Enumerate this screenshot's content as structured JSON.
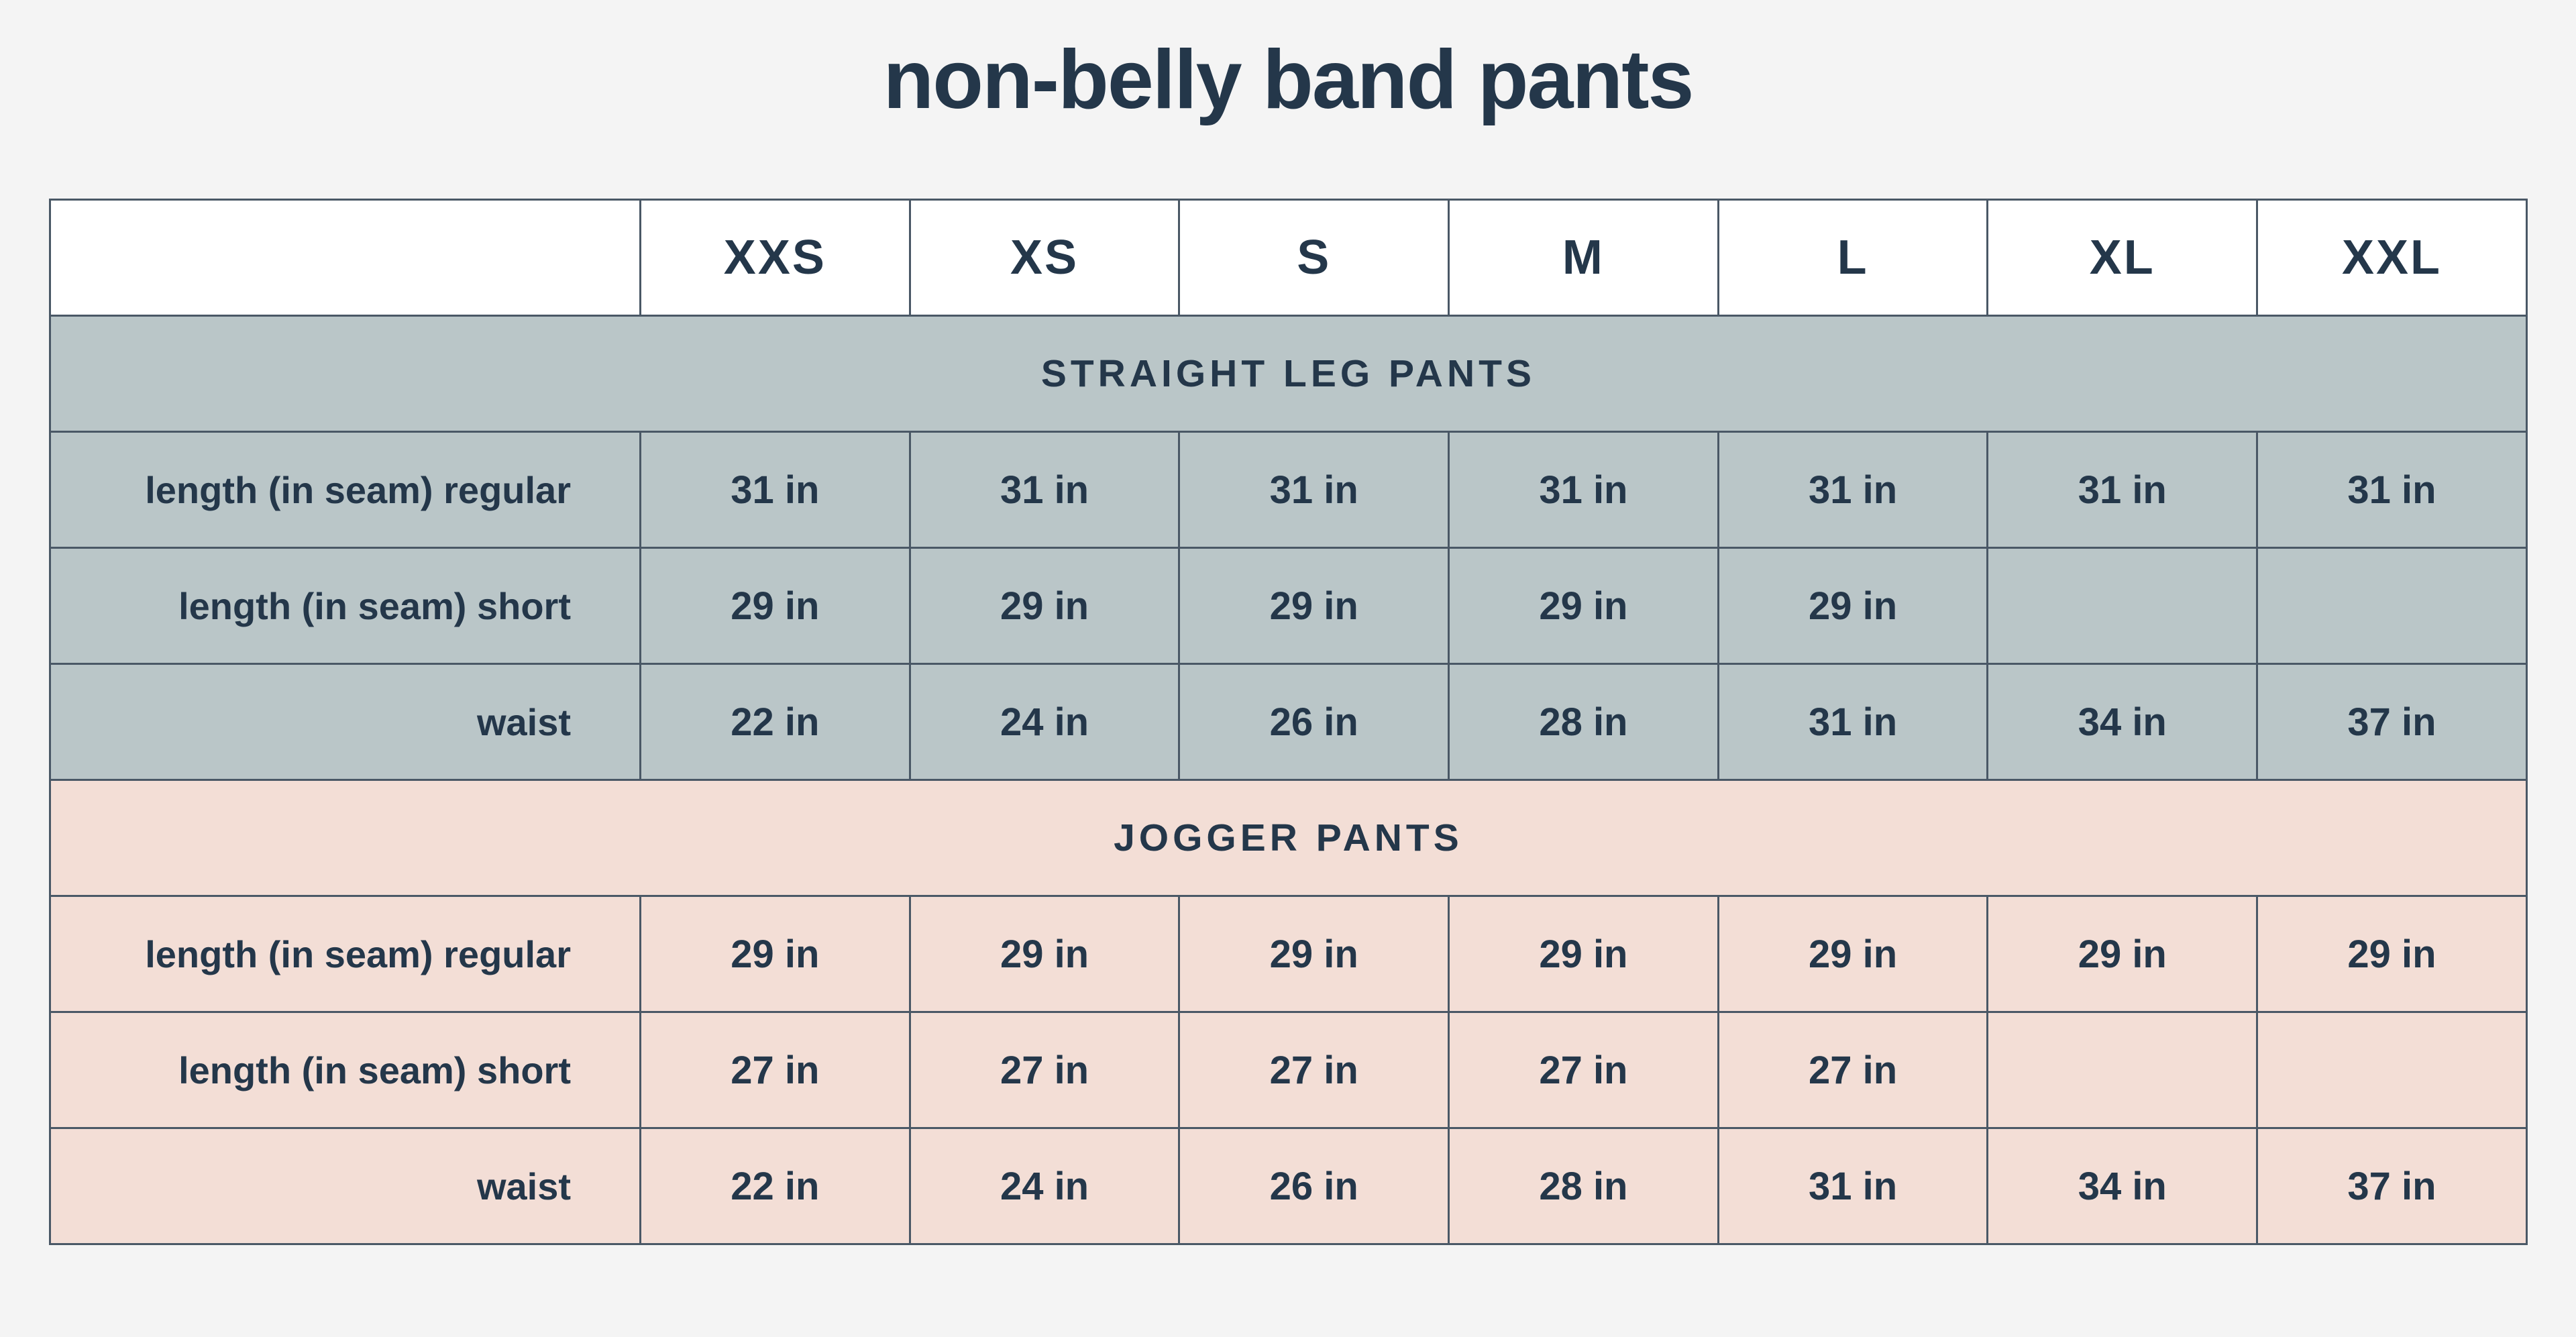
{
  "title": "non-belly band pants",
  "sizes": [
    "XXS",
    "XS",
    "S",
    "M",
    "L",
    "XL",
    "XXL"
  ],
  "sections": [
    {
      "name": "STRAIGHT LEG PANTS",
      "color": "#bac6c8",
      "rows": [
        {
          "label": "length (in seam) regular",
          "values": [
            "31 in",
            "31 in",
            "31 in",
            "31 in",
            "31 in",
            "31 in",
            "31 in"
          ]
        },
        {
          "label": "length (in seam) short",
          "values": [
            "29 in",
            "29 in",
            "29 in",
            "29 in",
            "29 in",
            "",
            ""
          ]
        },
        {
          "label": "waist",
          "values": [
            "22 in",
            "24 in",
            "26 in",
            "28 in",
            "31 in",
            "34 in",
            "37 in"
          ]
        }
      ]
    },
    {
      "name": "JOGGER PANTS",
      "color": "#f3ded6",
      "rows": [
        {
          "label": "length (in seam) regular",
          "values": [
            "29 in",
            "29 in",
            "29 in",
            "29 in",
            "29 in",
            "29 in",
            "29 in"
          ]
        },
        {
          "label": "length (in seam) short",
          "values": [
            "27 in",
            "27 in",
            "27 in",
            "27 in",
            "27 in",
            "",
            ""
          ]
        },
        {
          "label": "waist",
          "values": [
            "22 in",
            "24 in",
            "26 in",
            "28 in",
            "31 in",
            "34 in",
            "37 in"
          ]
        }
      ]
    }
  ],
  "colors": {
    "background": "#f4f4f4",
    "text": "#24374a",
    "border": "#4a5866",
    "header": "#ffffff"
  }
}
